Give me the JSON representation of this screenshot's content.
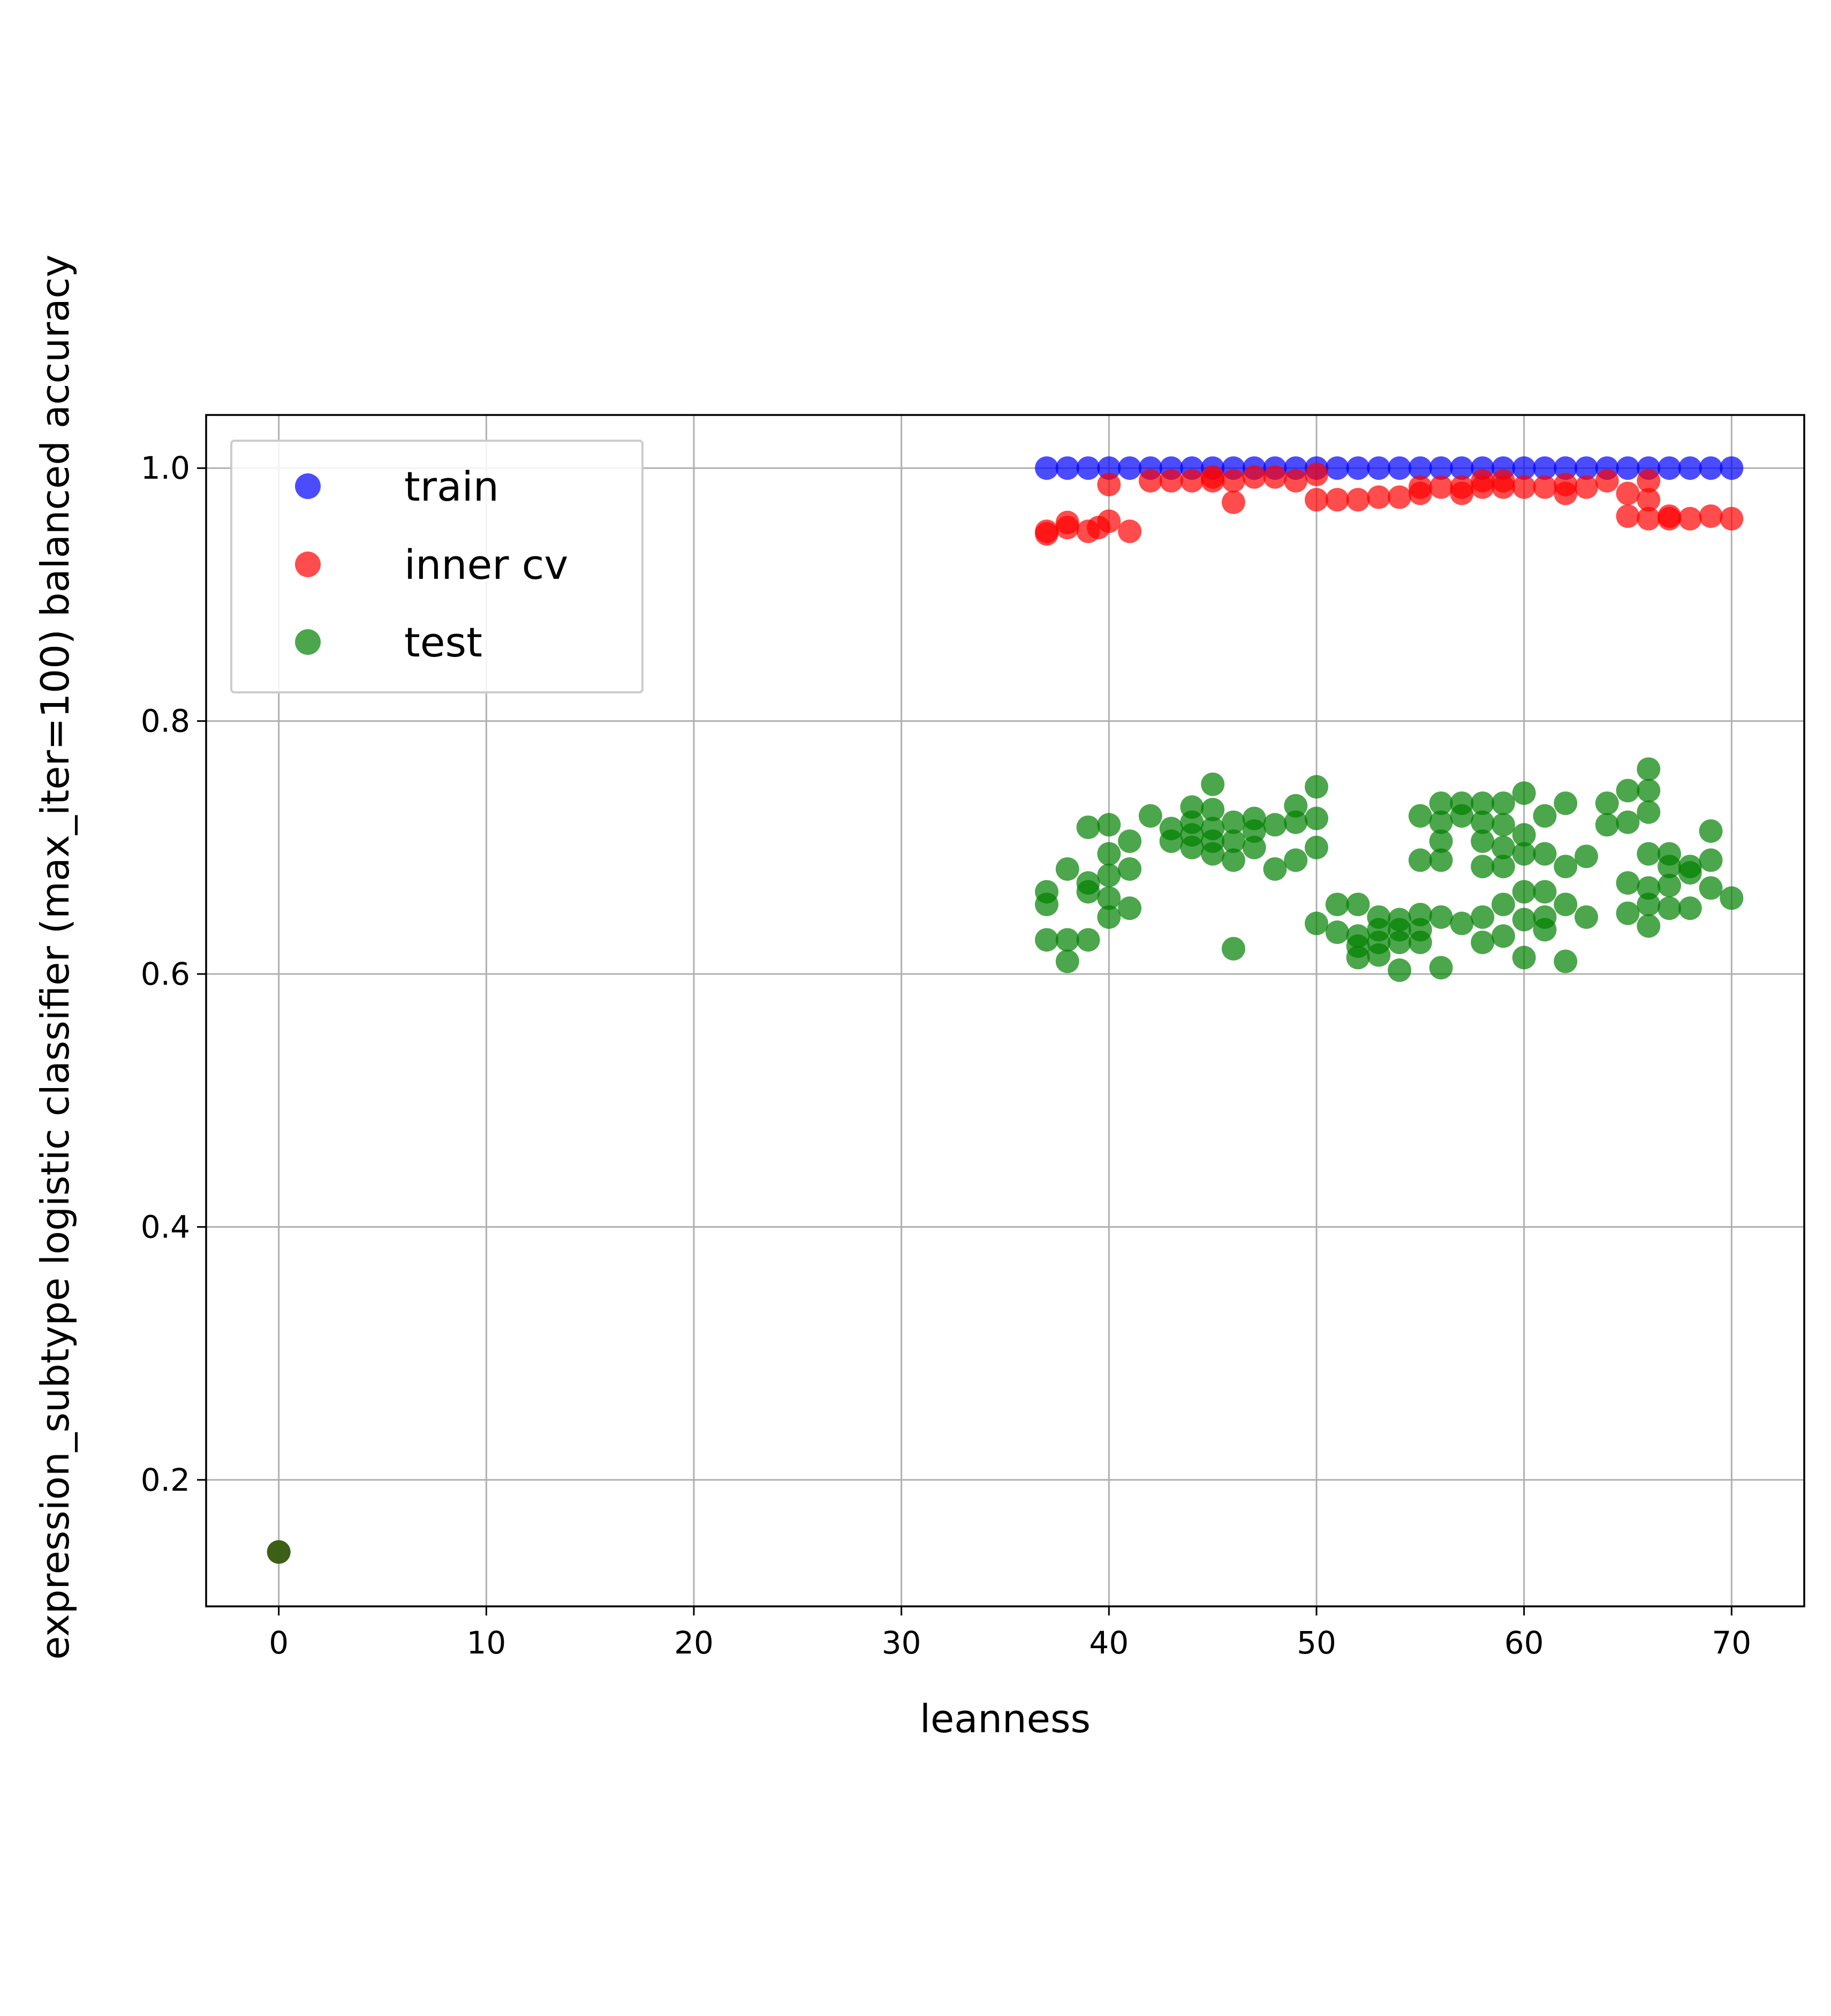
{
  "chart_data": {
    "type": "scatter",
    "xlabel": "leanness",
    "ylabel": "expression_subtype logistic classifier (max_iter=100) balanced accuracy",
    "xlim": [
      -3.5,
      73.5
    ],
    "ylim": [
      0.1,
      1.042
    ],
    "xticks": [
      0,
      10,
      20,
      30,
      40,
      50,
      60,
      70
    ],
    "yticks": [
      0.2,
      0.4,
      0.6,
      0.8,
      1.0
    ],
    "xtick_labels": [
      "0",
      "10",
      "20",
      "30",
      "40",
      "50",
      "60",
      "70"
    ],
    "ytick_labels": [
      "0.2",
      "0.4",
      "0.6",
      "0.8",
      "1.0"
    ],
    "grid": true,
    "legend_position": "upper-left",
    "legend": [
      "train",
      "inner cv",
      "test"
    ],
    "series": [
      {
        "name": "train",
        "color": "#0000ff",
        "x": [
          0,
          37,
          38,
          39,
          40,
          41,
          42,
          43,
          44,
          45,
          46,
          47,
          48,
          49,
          50,
          51,
          52,
          53,
          54,
          55,
          56,
          57,
          58,
          59,
          60,
          61,
          62,
          63,
          64,
          65,
          66,
          67,
          68,
          69,
          70
        ],
        "y": [
          0.143,
          1.0,
          1.0,
          1.0,
          1.0,
          1.0,
          1.0,
          1.0,
          1.0,
          1.0,
          1.0,
          1.0,
          1.0,
          1.0,
          1.0,
          1.0,
          1.0,
          1.0,
          1.0,
          1.0,
          1.0,
          1.0,
          1.0,
          1.0,
          1.0,
          1.0,
          1.0,
          1.0,
          1.0,
          1.0,
          1.0,
          1.0,
          1.0,
          1.0,
          1.0
        ]
      },
      {
        "name": "inner cv",
        "color": "#ff0000",
        "x": [
          0,
          37,
          37,
          38,
          38,
          39,
          39.5,
          40,
          40,
          41,
          42,
          43,
          44,
          45,
          45,
          46,
          46,
          47,
          48,
          49,
          50,
          50,
          51,
          52,
          53,
          54,
          55,
          55,
          56,
          57,
          57,
          58,
          58,
          59,
          59,
          60,
          61,
          62,
          62,
          63,
          64,
          65,
          65,
          66,
          66,
          66,
          67,
          67,
          68,
          69,
          70
        ],
        "y": [
          0.143,
          0.948,
          0.95,
          0.953,
          0.957,
          0.95,
          0.953,
          0.958,
          0.987,
          0.95,
          0.99,
          0.99,
          0.99,
          0.99,
          0.993,
          0.99,
          0.973,
          0.993,
          0.993,
          0.99,
          0.995,
          0.975,
          0.975,
          0.975,
          0.977,
          0.977,
          0.98,
          0.985,
          0.985,
          0.98,
          0.985,
          0.985,
          0.99,
          0.985,
          0.99,
          0.985,
          0.985,
          0.98,
          0.987,
          0.985,
          0.99,
          0.962,
          0.98,
          0.96,
          0.975,
          0.99,
          0.96,
          0.962,
          0.96,
          0.962,
          0.96
        ]
      },
      {
        "name": "test",
        "color": "#008000",
        "x": [
          0,
          37,
          37,
          37,
          38,
          38,
          38,
          39,
          39,
          39,
          39,
          40,
          40,
          40,
          40,
          40,
          41,
          41,
          41,
          42,
          43,
          43,
          44,
          44,
          44,
          44,
          45,
          45,
          45,
          45,
          45,
          46,
          46,
          46,
          46,
          47,
          47,
          47,
          48,
          48,
          49,
          49,
          49,
          50,
          50,
          50,
          50,
          51,
          51,
          52,
          52,
          52,
          52,
          53,
          53,
          53,
          53,
          54,
          54,
          54,
          54,
          55,
          55,
          55,
          55,
          55,
          56,
          56,
          56,
          56,
          56,
          56,
          57,
          57,
          57,
          58,
          58,
          58,
          58,
          58,
          58,
          59,
          59,
          59,
          59,
          59,
          59,
          60,
          60,
          60,
          60,
          60,
          60,
          61,
          61,
          61,
          61,
          61,
          62,
          62,
          62,
          62,
          63,
          63,
          64,
          64,
          65,
          65,
          65,
          65,
          66,
          66,
          66,
          66,
          66,
          66,
          66,
          67,
          67,
          67,
          67,
          68,
          68,
          68,
          69,
          69,
          69,
          70
        ],
        "y": [
          0.143,
          0.665,
          0.655,
          0.627,
          0.683,
          0.627,
          0.61,
          0.716,
          0.672,
          0.665,
          0.627,
          0.718,
          0.695,
          0.678,
          0.66,
          0.645,
          0.705,
          0.683,
          0.652,
          0.725,
          0.715,
          0.705,
          0.732,
          0.72,
          0.71,
          0.7,
          0.75,
          0.73,
          0.715,
          0.705,
          0.695,
          0.72,
          0.705,
          0.69,
          0.62,
          0.723,
          0.713,
          0.7,
          0.718,
          0.683,
          0.733,
          0.72,
          0.69,
          0.748,
          0.723,
          0.7,
          0.64,
          0.655,
          0.633,
          0.655,
          0.63,
          0.622,
          0.613,
          0.645,
          0.635,
          0.625,
          0.615,
          0.643,
          0.635,
          0.625,
          0.603,
          0.725,
          0.69,
          0.647,
          0.635,
          0.625,
          0.735,
          0.72,
          0.705,
          0.69,
          0.645,
          0.605,
          0.735,
          0.725,
          0.64,
          0.735,
          0.72,
          0.705,
          0.685,
          0.645,
          0.625,
          0.735,
          0.718,
          0.7,
          0.685,
          0.655,
          0.63,
          0.743,
          0.71,
          0.695,
          0.665,
          0.643,
          0.613,
          0.725,
          0.695,
          0.665,
          0.645,
          0.635,
          0.735,
          0.685,
          0.655,
          0.61,
          0.693,
          0.645,
          0.735,
          0.718,
          0.745,
          0.72,
          0.672,
          0.648,
          0.762,
          0.745,
          0.728,
          0.695,
          0.668,
          0.655,
          0.638,
          0.695,
          0.685,
          0.67,
          0.652,
          0.685,
          0.68,
          0.652,
          0.713,
          0.69,
          0.668,
          0.66
        ]
      }
    ]
  }
}
